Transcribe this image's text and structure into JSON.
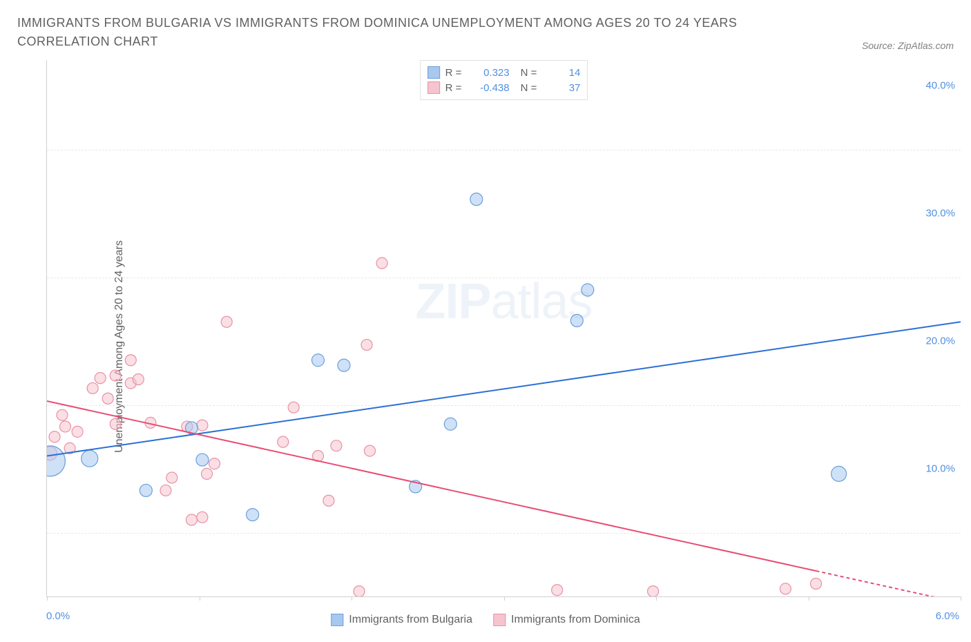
{
  "title": "IMMIGRANTS FROM BULGARIA VS IMMIGRANTS FROM DOMINICA UNEMPLOYMENT AMONG AGES 20 TO 24 YEARS CORRELATION CHART",
  "source_label": "Source: ZipAtlas.com",
  "y_axis_label": "Unemployment Among Ages 20 to 24 years",
  "watermark": {
    "zip": "ZIP",
    "atlas": "atlas"
  },
  "chart": {
    "type": "scatter",
    "background_color": "#ffffff",
    "grid_color": "#e8e8e8",
    "axis_color": "#d0d0d0",
    "x_range": [
      0.0,
      6.0
    ],
    "y_range": [
      0.0,
      42.0
    ],
    "y_right_ticks": [
      10.0,
      20.0,
      30.0,
      40.0
    ],
    "y_right_tick_labels": [
      "10.0%",
      "20.0%",
      "30.0%",
      "40.0%"
    ],
    "y_grid_positions": [
      5,
      15,
      25,
      35
    ],
    "x_left_label": "0.0%",
    "x_right_label": "6.0%",
    "x_ticks": [
      0,
      1,
      2,
      3,
      4,
      5,
      6
    ],
    "tick_label_color": "#5090e0",
    "axis_label_color": "#606060",
    "axis_label_fontsize": 16,
    "tick_label_fontsize": 15
  },
  "series": {
    "bulgaria": {
      "label": "Immigrants from Bulgaria",
      "fill_color": "#a8c8f0",
      "stroke_color": "#6a9edb",
      "fill_opacity": 0.55,
      "line_color": "#2a6fd6",
      "line_width": 2,
      "marker_radius": 9,
      "R": "0.323",
      "N": "14",
      "trend": {
        "x1": 0.0,
        "y1": 11.0,
        "x2": 6.0,
        "y2": 21.5
      },
      "points": [
        {
          "x": 0.02,
          "y": 10.6,
          "r": 22
        },
        {
          "x": 0.28,
          "y": 10.8,
          "r": 12
        },
        {
          "x": 0.65,
          "y": 8.3,
          "r": 9
        },
        {
          "x": 0.95,
          "y": 13.2,
          "r": 9
        },
        {
          "x": 1.02,
          "y": 10.7,
          "r": 9
        },
        {
          "x": 1.35,
          "y": 6.4,
          "r": 9
        },
        {
          "x": 1.78,
          "y": 18.5,
          "r": 9
        },
        {
          "x": 1.95,
          "y": 18.1,
          "r": 9
        },
        {
          "x": 2.42,
          "y": 8.6,
          "r": 9
        },
        {
          "x": 2.65,
          "y": 13.5,
          "r": 9
        },
        {
          "x": 2.82,
          "y": 31.1,
          "r": 9
        },
        {
          "x": 3.48,
          "y": 21.6,
          "r": 9
        },
        {
          "x": 3.55,
          "y": 24.0,
          "r": 9
        },
        {
          "x": 5.2,
          "y": 9.6,
          "r": 11
        }
      ]
    },
    "dominica": {
      "label": "Immigrants from Dominica",
      "fill_color": "#f6c4cf",
      "stroke_color": "#e890a5",
      "fill_opacity": 0.55,
      "line_color": "#e84c74",
      "line_width": 2,
      "marker_radius": 8,
      "R": "-0.438",
      "N": "37",
      "trend_solid": {
        "x1": 0.0,
        "y1": 15.3,
        "x2": 5.05,
        "y2": 2.0
      },
      "trend_dashed": {
        "x1": 5.05,
        "y1": 2.0,
        "x2": 6.0,
        "y2": -0.5
      },
      "points": [
        {
          "x": 0.02,
          "y": 11.2,
          "r": 10
        },
        {
          "x": 0.05,
          "y": 12.5,
          "r": 8
        },
        {
          "x": 0.1,
          "y": 14.2,
          "r": 8
        },
        {
          "x": 0.12,
          "y": 13.3,
          "r": 8
        },
        {
          "x": 0.15,
          "y": 11.6,
          "r": 8
        },
        {
          "x": 0.2,
          "y": 12.9,
          "r": 8
        },
        {
          "x": 0.3,
          "y": 16.3,
          "r": 8
        },
        {
          "x": 0.35,
          "y": 17.1,
          "r": 8
        },
        {
          "x": 0.4,
          "y": 15.5,
          "r": 8
        },
        {
          "x": 0.45,
          "y": 17.3,
          "r": 8
        },
        {
          "x": 0.45,
          "y": 13.5,
          "r": 8
        },
        {
          "x": 0.55,
          "y": 18.5,
          "r": 8
        },
        {
          "x": 0.55,
          "y": 16.7,
          "r": 8
        },
        {
          "x": 0.6,
          "y": 17.0,
          "r": 8
        },
        {
          "x": 0.68,
          "y": 13.6,
          "r": 8
        },
        {
          "x": 0.78,
          "y": 8.3,
          "r": 8
        },
        {
          "x": 0.82,
          "y": 9.3,
          "r": 8
        },
        {
          "x": 0.92,
          "y": 13.3,
          "r": 8
        },
        {
          "x": 0.95,
          "y": 6.0,
          "r": 8
        },
        {
          "x": 1.02,
          "y": 6.2,
          "r": 8
        },
        {
          "x": 1.02,
          "y": 13.4,
          "r": 8
        },
        {
          "x": 1.05,
          "y": 9.6,
          "r": 8
        },
        {
          "x": 1.1,
          "y": 10.4,
          "r": 8
        },
        {
          "x": 1.18,
          "y": 21.5,
          "r": 8
        },
        {
          "x": 1.55,
          "y": 12.1,
          "r": 8
        },
        {
          "x": 1.62,
          "y": 14.8,
          "r": 8
        },
        {
          "x": 1.78,
          "y": 11.0,
          "r": 8
        },
        {
          "x": 1.85,
          "y": 7.5,
          "r": 8
        },
        {
          "x": 1.9,
          "y": 11.8,
          "r": 8
        },
        {
          "x": 2.05,
          "y": 0.4,
          "r": 8
        },
        {
          "x": 2.1,
          "y": 19.7,
          "r": 8
        },
        {
          "x": 2.12,
          "y": 11.4,
          "r": 8
        },
        {
          "x": 2.2,
          "y": 26.1,
          "r": 8
        },
        {
          "x": 3.35,
          "y": 0.5,
          "r": 8
        },
        {
          "x": 3.98,
          "y": 0.4,
          "r": 8
        },
        {
          "x": 4.85,
          "y": 0.6,
          "r": 8
        },
        {
          "x": 5.05,
          "y": 1.0,
          "r": 8
        }
      ]
    }
  },
  "legend_stats_labels": {
    "R": "R =",
    "N": "N ="
  }
}
